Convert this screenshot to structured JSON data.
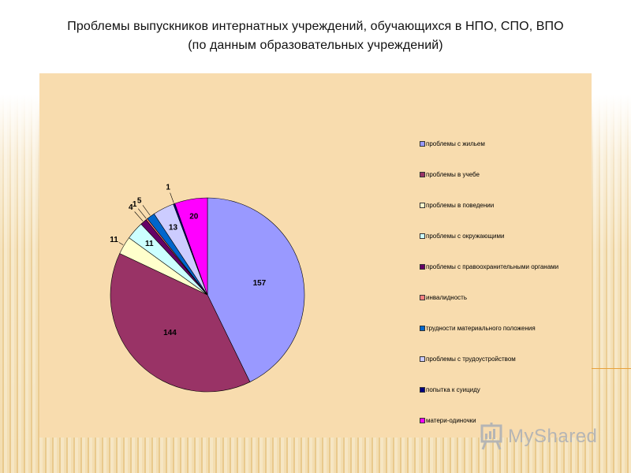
{
  "title": {
    "line1": "Проблемы выпускников интернатных учреждений, обучающихся в НПО, СПО, ВПО",
    "line2": "(по данным образовательных учреждений)"
  },
  "chart_data": {
    "type": "pie",
    "title": "Проблемы выпускников интернатных учреждений, обучающихся в НПО, СПО, ВПО (по данным образовательных учреждений)",
    "legend_position": "right",
    "slices": [
      {
        "label": "проблемы с жильем",
        "value": 157,
        "color": "#9999ff"
      },
      {
        "label": "проблемы в учебе",
        "value": 144,
        "color": "#993366"
      },
      {
        "label": "проблемы в поведении",
        "value": 11,
        "color": "#ffffcc"
      },
      {
        "label": "проблемы с окружающими",
        "value": 11,
        "color": "#ccffff"
      },
      {
        "label": "проблемы с правоохранительными органами",
        "value": 4,
        "color": "#660066"
      },
      {
        "label": "инвалидность",
        "value": 1,
        "color": "#ff8080"
      },
      {
        "label": "трудности материального положения",
        "value": 5,
        "color": "#0066cc"
      },
      {
        "label": "проблемы с трудоустройством",
        "value": 13,
        "color": "#ccccff"
      },
      {
        "label": "попытка к суициду",
        "value": 1,
        "color": "#000080"
      },
      {
        "label": "матери-одиночки",
        "value": 20,
        "color": "#ff00ff"
      }
    ]
  },
  "watermark": {
    "text": "MyShared",
    "icon": "presentation-board-icon"
  }
}
